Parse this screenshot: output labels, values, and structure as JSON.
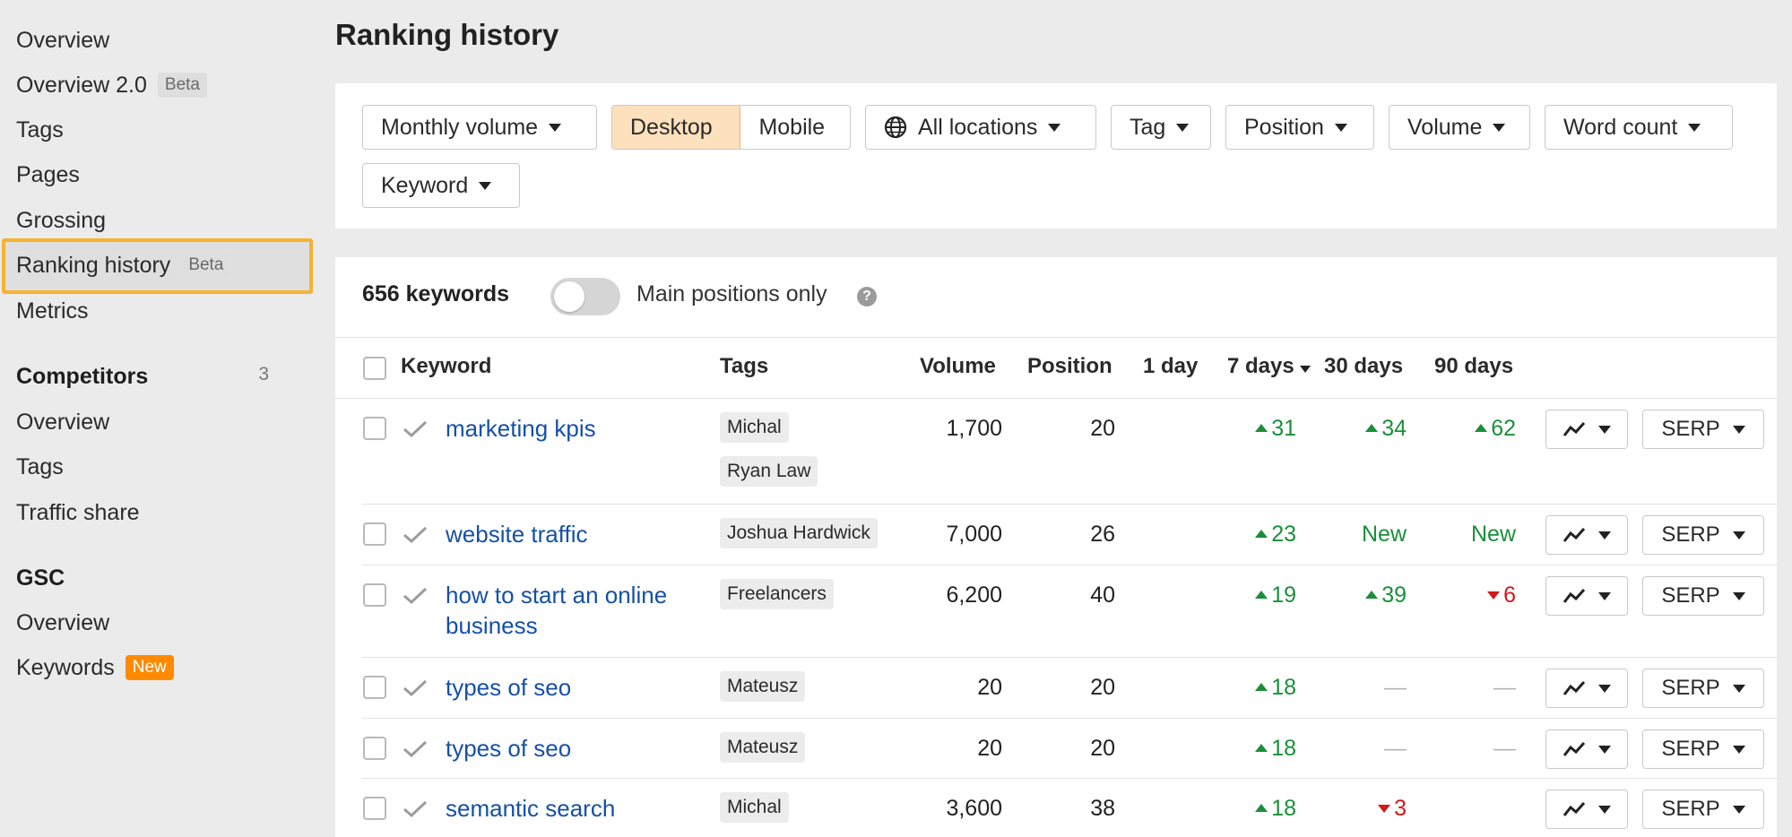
{
  "sidebar": {
    "items": [
      {
        "label": "Overview"
      },
      {
        "label": "Overview 2.0",
        "badge": "Beta"
      },
      {
        "label": "Tags"
      },
      {
        "label": "Pages"
      },
      {
        "label": "Grossing"
      },
      {
        "label": "Ranking history",
        "badge": "Beta"
      },
      {
        "label": "Metrics"
      }
    ],
    "competitors": {
      "title": "Competitors",
      "count": "3",
      "items": [
        {
          "label": "Overview"
        },
        {
          "label": "Tags"
        },
        {
          "label": "Traffic share"
        }
      ]
    },
    "gsc": {
      "title": "GSC",
      "items": [
        {
          "label": "Overview"
        },
        {
          "label": "Keywords",
          "badge": "New"
        }
      ]
    }
  },
  "page": {
    "title": "Ranking history"
  },
  "filters": {
    "monthly_volume": "Monthly volume",
    "device": {
      "desktop": "Desktop",
      "mobile": "Mobile",
      "selected": "Desktop"
    },
    "locations": "All locations",
    "tag": "Tag",
    "position": "Position",
    "volume": "Volume",
    "word_count": "Word count",
    "keyword": "Keyword"
  },
  "summary": {
    "count": "656 keywords",
    "toggle_label": "Main positions only",
    "toggle_on": false,
    "help": "?"
  },
  "table": {
    "headers": {
      "keyword": "Keyword",
      "tags": "Tags",
      "volume": "Volume",
      "position": "Position",
      "d1": "1 day",
      "d7": "7 days",
      "d30": "30 days",
      "d90": "90 days"
    },
    "serp_label": "SERP",
    "rows": [
      {
        "keyword": "marketing kpis",
        "tags": [
          "Michal",
          "Ryan Law"
        ],
        "volume": "1,700",
        "position": "20",
        "d1": "",
        "d7": {
          "dir": "up",
          "v": "31"
        },
        "d30": {
          "dir": "up",
          "v": "34"
        },
        "d90": {
          "dir": "up",
          "v": "62"
        }
      },
      {
        "keyword": "website traffic",
        "tags": [
          "Joshua Hardwick"
        ],
        "volume": "7,000",
        "position": "26",
        "d1": "",
        "d7": {
          "dir": "up",
          "v": "23"
        },
        "d30": {
          "dir": "new",
          "v": "New"
        },
        "d90": {
          "dir": "new",
          "v": "New"
        }
      },
      {
        "keyword": "how to start an online business",
        "tags": [
          "Freelancers"
        ],
        "volume": "6,200",
        "position": "40",
        "d1": "",
        "d7": {
          "dir": "up",
          "v": "19"
        },
        "d30": {
          "dir": "up",
          "v": "39"
        },
        "d90": {
          "dir": "down",
          "v": "6"
        }
      },
      {
        "keyword": "types of seo",
        "tags": [
          "Mateusz"
        ],
        "volume": "20",
        "position": "20",
        "d1": "",
        "d7": {
          "dir": "up",
          "v": "18"
        },
        "d30": {
          "dir": "dash",
          "v": "—"
        },
        "d90": {
          "dir": "dash",
          "v": "—"
        }
      },
      {
        "keyword": "types of seo",
        "tags": [
          "Mateusz"
        ],
        "volume": "20",
        "position": "20",
        "d1": "",
        "d7": {
          "dir": "up",
          "v": "18"
        },
        "d30": {
          "dir": "dash",
          "v": "—"
        },
        "d90": {
          "dir": "dash",
          "v": "—"
        }
      },
      {
        "keyword": "semantic search",
        "tags": [
          "Michal"
        ],
        "volume": "3,600",
        "position": "38",
        "d1": "",
        "d7": {
          "dir": "up",
          "v": "18"
        },
        "d30": {
          "dir": "down",
          "v": "3"
        },
        "d90": {
          "dir": "none",
          "v": ""
        }
      }
    ]
  },
  "colors": {
    "accent_highlight": "#f7b330",
    "link": "#1550a8",
    "up": "#1a8f3a",
    "down": "#d3171d",
    "new_badge": "#ff8a00",
    "desktop_selected": "#fde0bd"
  }
}
